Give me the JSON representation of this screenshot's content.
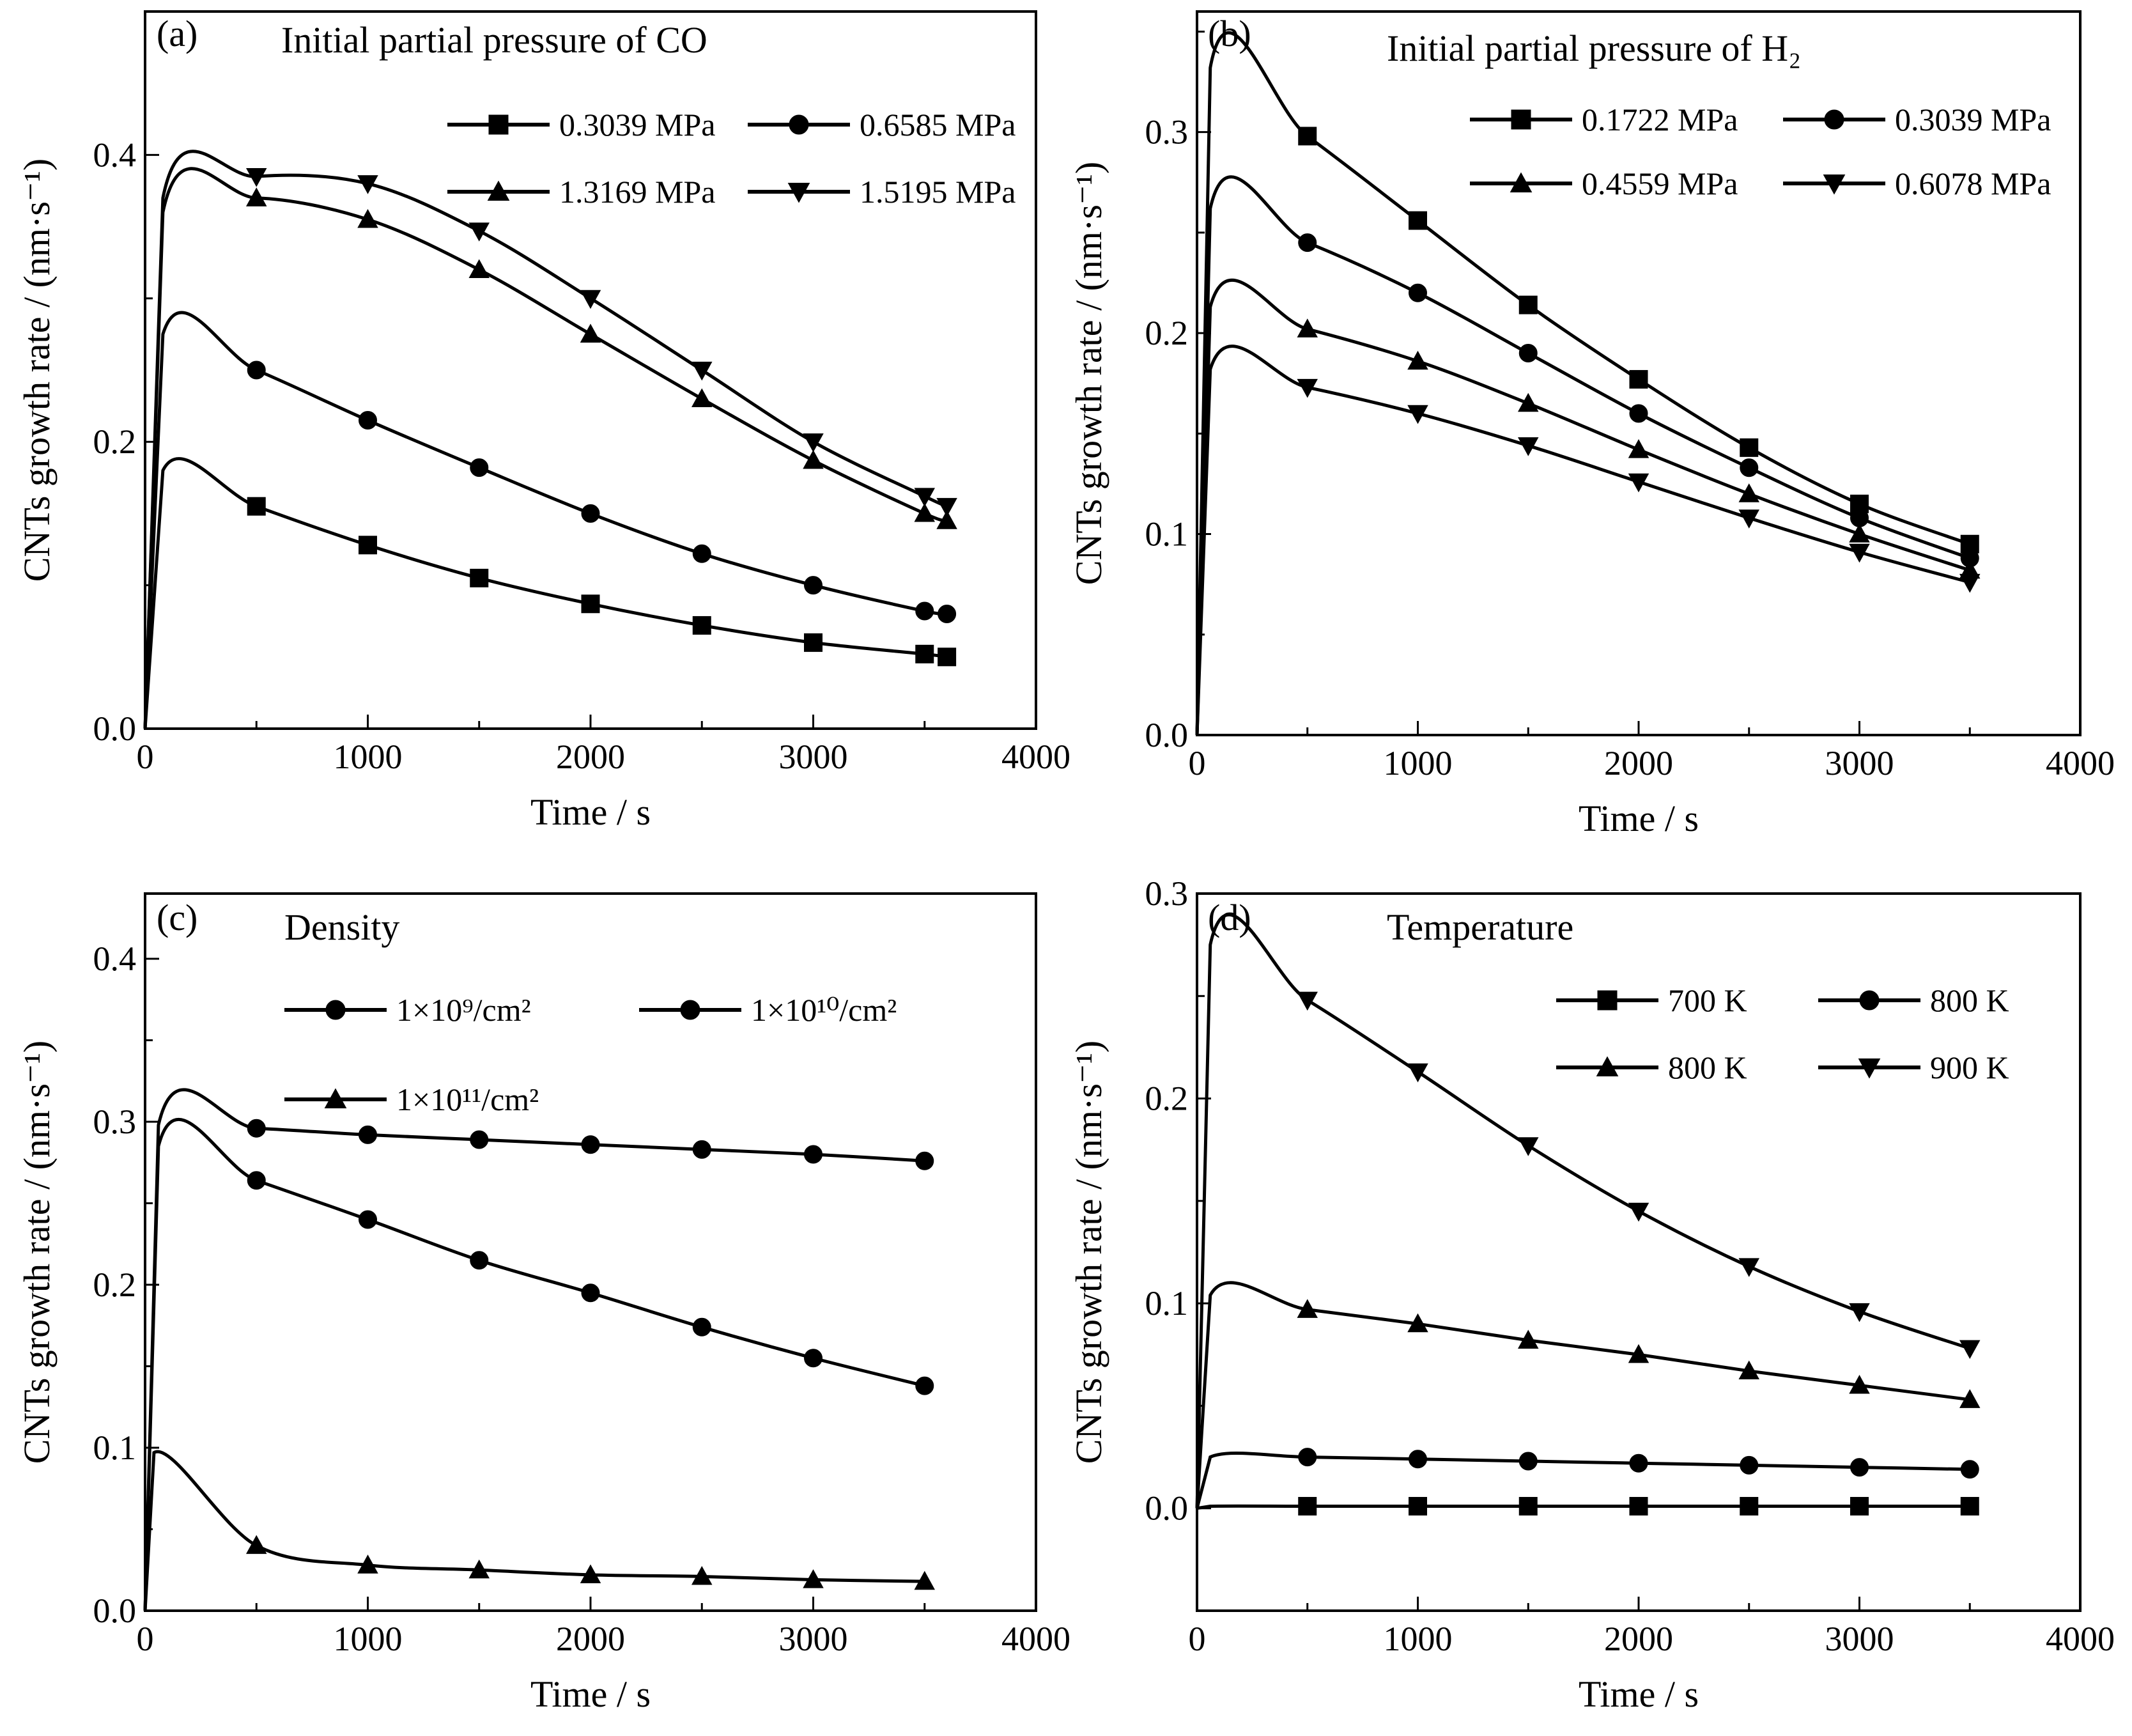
{
  "chart_data": [
    {
      "panel_label": "(a)",
      "type": "line",
      "title": "Initial partial pressure of CO",
      "xlabel": "Time / s",
      "ylabel": "CNTs growth rate / (nm·s⁻¹)",
      "xlim": [
        0,
        4000
      ],
      "ylim": [
        0,
        0.5
      ],
      "xticks": [
        "0",
        "1000",
        "2000",
        "3000",
        "4000"
      ],
      "yticks": [
        "0.0",
        "0.2",
        "0.4"
      ],
      "legend_placement": "top-right",
      "series": [
        {
          "name": "0.3039 MPa",
          "marker": "square",
          "x": [
            0,
            80,
            500,
            1000,
            1500,
            2000,
            2500,
            3000,
            3500,
            3600
          ],
          "y": [
            0,
            0.18,
            0.155,
            0.128,
            0.105,
            0.087,
            0.072,
            0.06,
            0.052,
            0.05
          ]
        },
        {
          "name": "0.6585 MPa",
          "marker": "circle",
          "x": [
            0,
            80,
            500,
            1000,
            1500,
            2000,
            2500,
            3000,
            3500,
            3600
          ],
          "y": [
            0,
            0.275,
            0.25,
            0.215,
            0.182,
            0.15,
            0.122,
            0.1,
            0.082,
            0.08
          ]
        },
        {
          "name": "1.3169 MPa",
          "marker": "triangle-up",
          "x": [
            0,
            80,
            500,
            1000,
            1500,
            2000,
            2500,
            3000,
            3500,
            3600
          ],
          "y": [
            0,
            0.36,
            0.37,
            0.355,
            0.32,
            0.275,
            0.23,
            0.187,
            0.15,
            0.145
          ]
        },
        {
          "name": "1.5195 MPa",
          "marker": "triangle-down",
          "x": [
            0,
            80,
            500,
            1000,
            1500,
            2000,
            2500,
            3000,
            3500,
            3600
          ],
          "y": [
            0,
            0.37,
            0.385,
            0.38,
            0.347,
            0.3,
            0.25,
            0.2,
            0.162,
            0.155
          ]
        }
      ]
    },
    {
      "panel_label": "(b)",
      "type": "line",
      "title": "Initial partial pressure of H₂",
      "xlabel": "Time / s",
      "ylabel": "CNTs growth rate / (nm·s⁻¹)",
      "xlim": [
        0,
        4000
      ],
      "ylim": [
        0,
        0.36
      ],
      "xticks": [
        "0",
        "1000",
        "2000",
        "3000",
        "4000"
      ],
      "yticks": [
        "0.0",
        "0.1",
        "0.2",
        "0.3"
      ],
      "legend_placement": "top-right",
      "series": [
        {
          "name": "0.1722 MPa",
          "marker": "square",
          "x": [
            0,
            60,
            500,
            1000,
            1500,
            2000,
            2500,
            3000,
            3500
          ],
          "y": [
            0,
            0.332,
            0.298,
            0.256,
            0.214,
            0.177,
            0.143,
            0.115,
            0.095
          ]
        },
        {
          "name": "0.3039 MPa",
          "marker": "circle",
          "x": [
            0,
            60,
            500,
            1000,
            1500,
            2000,
            2500,
            3000,
            3500
          ],
          "y": [
            0,
            0.262,
            0.245,
            0.22,
            0.19,
            0.16,
            0.133,
            0.108,
            0.088
          ]
        },
        {
          "name": "0.4559 MPa",
          "marker": "triangle-up",
          "x": [
            0,
            60,
            500,
            1000,
            1500,
            2000,
            2500,
            3000,
            3500
          ],
          "y": [
            0,
            0.213,
            0.202,
            0.186,
            0.165,
            0.142,
            0.12,
            0.1,
            0.082
          ]
        },
        {
          "name": "0.6078 MPa",
          "marker": "triangle-down",
          "x": [
            0,
            60,
            500,
            1000,
            1500,
            2000,
            2500,
            3000,
            3500
          ],
          "y": [
            0,
            0.182,
            0.173,
            0.16,
            0.144,
            0.126,
            0.108,
            0.091,
            0.076
          ]
        }
      ]
    },
    {
      "panel_label": "(c)",
      "type": "line",
      "title": "Density",
      "xlabel": "Time / s",
      "ylabel": "CNTs growth rate / (nm·s⁻¹)",
      "xlim": [
        0,
        4000
      ],
      "ylim": [
        0,
        0.44
      ],
      "xticks": [
        "0",
        "1000",
        "2000",
        "3000",
        "4000"
      ],
      "yticks": [
        "0.0",
        "0.1",
        "0.2",
        "0.3",
        "0.4"
      ],
      "legend_placement": "top-left",
      "series": [
        {
          "name": "1×10⁹/cm²",
          "marker": "circle",
          "x": [
            0,
            60,
            500,
            1000,
            1500,
            2000,
            2500,
            3000,
            3500
          ],
          "y": [
            0,
            0.298,
            0.296,
            0.292,
            0.289,
            0.286,
            0.283,
            0.28,
            0.276
          ]
        },
        {
          "name": "1×10¹⁰/cm²",
          "marker": "circle",
          "x": [
            0,
            60,
            500,
            1000,
            1500,
            2000,
            2500,
            3000,
            3500
          ],
          "y": [
            0,
            0.285,
            0.264,
            0.24,
            0.215,
            0.195,
            0.174,
            0.155,
            0.138
          ]
        },
        {
          "name": "1×10¹¹/cm²",
          "marker": "triangle-up",
          "x": [
            0,
            40,
            500,
            1000,
            1500,
            2000,
            2500,
            3000,
            3500
          ],
          "y": [
            0,
            0.097,
            0.04,
            0.028,
            0.025,
            0.022,
            0.021,
            0.019,
            0.018
          ]
        }
      ]
    },
    {
      "panel_label": "(d)",
      "type": "line",
      "title": "Temperature",
      "xlabel": "Time / s",
      "ylabel": "CNTs growth rate / (nm·s⁻¹)",
      "xlim": [
        0,
        4000
      ],
      "ylim": [
        -0.05,
        0.3
      ],
      "xticks": [
        "0",
        "1000",
        "2000",
        "3000",
        "4000"
      ],
      "yticks": [
        "0.0",
        "0.1",
        "0.2",
        "0.3"
      ],
      "legend_placement": "top-right",
      "series": [
        {
          "name": "700 K",
          "marker": "square",
          "x": [
            0,
            60,
            500,
            1000,
            1500,
            2000,
            2500,
            3000,
            3500
          ],
          "y": [
            0,
            0.001,
            0.001,
            0.001,
            0.001,
            0.001,
            0.001,
            0.001,
            0.001
          ]
        },
        {
          "name": "800 K",
          "marker": "circle",
          "x": [
            0,
            60,
            500,
            1000,
            1500,
            2000,
            2500,
            3000,
            3500
          ],
          "y": [
            0,
            0.025,
            0.025,
            0.024,
            0.023,
            0.022,
            0.021,
            0.02,
            0.019
          ]
        },
        {
          "name": "800 K",
          "marker": "triangle-up",
          "x": [
            0,
            60,
            500,
            1000,
            1500,
            2000,
            2500,
            3000,
            3500
          ],
          "y": [
            0,
            0.104,
            0.097,
            0.09,
            0.082,
            0.075,
            0.067,
            0.06,
            0.053
          ]
        },
        {
          "name": "900 K",
          "marker": "triangle-down",
          "x": [
            0,
            60,
            500,
            1000,
            1500,
            2000,
            2500,
            3000,
            3500
          ],
          "y": [
            0,
            0.275,
            0.248,
            0.213,
            0.177,
            0.145,
            0.118,
            0.096,
            0.078
          ]
        }
      ]
    }
  ]
}
